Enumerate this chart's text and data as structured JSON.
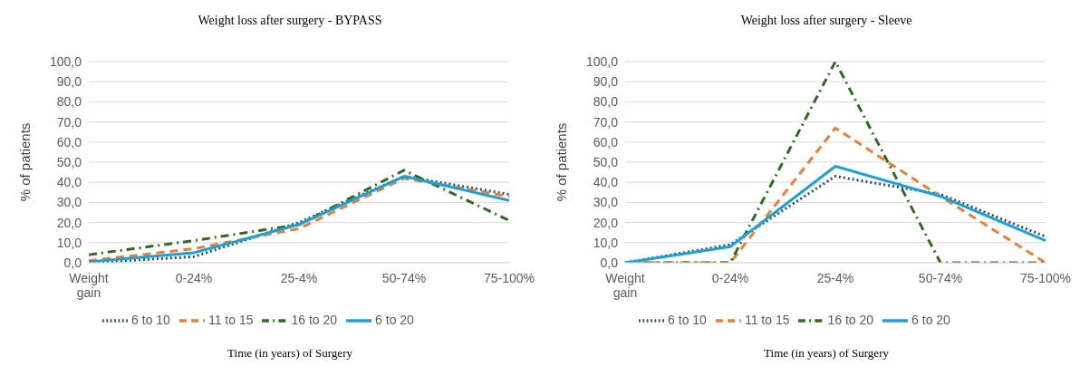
{
  "chart_data": [
    {
      "type": "line",
      "title": "Weight loss after surgery - BYPASS",
      "xlabel": "Time (in years) of Surgery",
      "ylabel": "% of patients",
      "categories": [
        "Weight gain",
        "0-24%",
        "25-4%",
        "50-74%",
        "75-100%"
      ],
      "series": [
        {
          "name": "6 to 10",
          "color": "#1f4e79",
          "line_style": "dotted",
          "values": [
            0,
            3,
            20,
            43,
            34
          ]
        },
        {
          "name": "11 to 15",
          "color": "#ed7d31",
          "line_style": "dashed",
          "values": [
            1,
            7,
            17,
            42,
            33
          ]
        },
        {
          "name": "16 to 20",
          "color": "#2e6b1f",
          "line_style": "dashdot",
          "values": [
            4,
            11,
            19,
            46,
            21
          ]
        },
        {
          "name": "6 to 20",
          "color": "#1ba1d8",
          "line_style": "solid",
          "values": [
            0.5,
            5,
            19,
            43,
            31
          ]
        }
      ],
      "ylim": [
        0,
        100
      ],
      "yticks": [
        {
          "value": 0,
          "label": "0,0"
        },
        {
          "value": 10,
          "label": "10,0"
        },
        {
          "value": 20,
          "label": "20,0"
        },
        {
          "value": 30,
          "label": "30,0"
        },
        {
          "value": 40,
          "label": "40,0"
        },
        {
          "value": 50,
          "label": "50,0"
        },
        {
          "value": 60,
          "label": "60,0"
        },
        {
          "value": 70,
          "label": "70,0"
        },
        {
          "value": 80,
          "label": "80,0"
        },
        {
          "value": 90,
          "label": "90,0"
        },
        {
          "value": 100,
          "label": "100,0"
        }
      ],
      "grid": "y",
      "legend": "bottom",
      "marker": "none"
    },
    {
      "type": "line",
      "title": "Weight loss after surgery - Sleeve",
      "xlabel": "Time (in years) of Surgery",
      "ylabel": "% of patients",
      "categories": [
        "Weight gain",
        "0-24%",
        "25-4%",
        "50-74%",
        "75-100%"
      ],
      "series": [
        {
          "name": "6 to 10",
          "color": "#1f4e79",
          "line_style": "dotted",
          "values": [
            0,
            9,
            43,
            34,
            13
          ]
        },
        {
          "name": "11 to 15",
          "color": "#ed7d31",
          "line_style": "dashed",
          "values": [
            0,
            0,
            67,
            33,
            0
          ]
        },
        {
          "name": "16 to 20",
          "color": "#2e6b1f",
          "line_style": "dashdot",
          "values": [
            0,
            0,
            100,
            0,
            0
          ]
        },
        {
          "name": "6 to 20",
          "color": "#1ba1d8",
          "line_style": "solid",
          "values": [
            0,
            8,
            48,
            33,
            11
          ]
        }
      ],
      "ylim": [
        0,
        100
      ],
      "yticks": [
        {
          "value": 0,
          "label": "0,0"
        },
        {
          "value": 10,
          "label": "10,0"
        },
        {
          "value": 20,
          "label": "20,0"
        },
        {
          "value": 30,
          "label": "30,0"
        },
        {
          "value": 40,
          "label": "40,0"
        },
        {
          "value": 50,
          "label": "50,0"
        },
        {
          "value": 60,
          "label": "60,0"
        },
        {
          "value": 70,
          "label": "70,0"
        },
        {
          "value": 80,
          "label": "80,0"
        },
        {
          "value": 90,
          "label": "90,0"
        },
        {
          "value": 100,
          "label": "100,0"
        }
      ],
      "grid": "y",
      "legend": "bottom",
      "marker": "none"
    }
  ]
}
